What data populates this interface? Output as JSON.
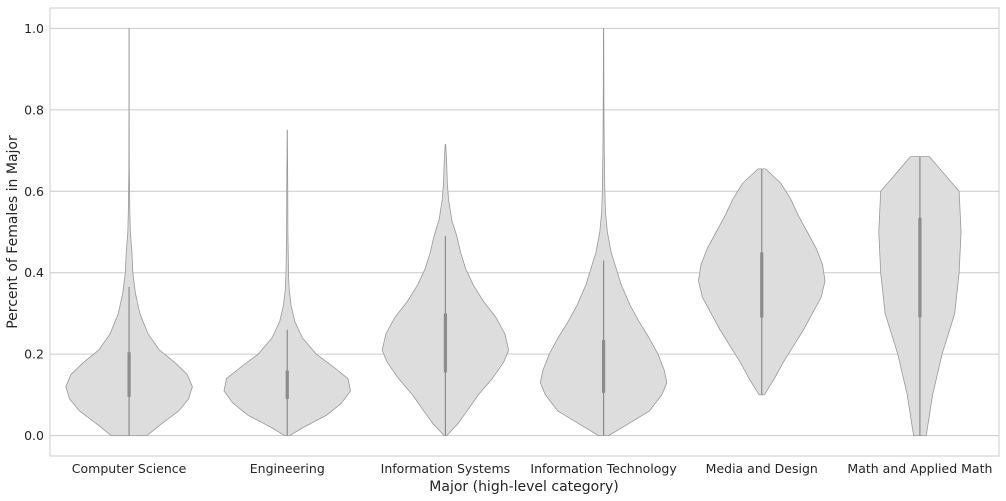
{
  "chart_data": {
    "type": "violin",
    "title": "",
    "xlabel": "Major (high-level category)",
    "ylabel": "Percent of Females in Major",
    "ylim": [
      -0.05,
      1.05
    ],
    "yticks": [
      "0.0",
      "0.2",
      "0.4",
      "0.6",
      "0.8",
      "1.0"
    ],
    "ytick_values": [
      0.0,
      0.2,
      0.4,
      0.6,
      0.8,
      1.0
    ],
    "grid": true,
    "colors": {
      "fill": "#dddddd",
      "edge": "#999999",
      "box": "#8c8c8c",
      "grid": "#cccccc"
    },
    "categories": [
      "Computer Science",
      "Engineering",
      "Information Systems",
      "Information Technology",
      "Media and Design",
      "Math and Applied Math"
    ],
    "violins": [
      {
        "min": 0.0,
        "max": 1.0,
        "q1": 0.095,
        "median": 0.14,
        "q3": 0.205,
        "whisker_low": 0.0,
        "whisker_high": 0.365,
        "profile": [
          [
            0.0,
            0.28
          ],
          [
            0.03,
            0.52
          ],
          [
            0.06,
            0.78
          ],
          [
            0.09,
            0.94
          ],
          [
            0.12,
            1.0
          ],
          [
            0.15,
            0.92
          ],
          [
            0.18,
            0.72
          ],
          [
            0.21,
            0.48
          ],
          [
            0.25,
            0.3
          ],
          [
            0.3,
            0.17
          ],
          [
            0.35,
            0.1
          ],
          [
            0.4,
            0.06
          ],
          [
            0.45,
            0.045
          ],
          [
            0.5,
            0.02
          ],
          [
            0.55,
            0.012
          ],
          [
            0.6,
            0.008
          ],
          [
            0.65,
            0.004
          ],
          [
            0.7,
            0.003
          ],
          [
            0.8,
            0.002
          ],
          [
            0.9,
            0.002
          ],
          [
            1.0,
            0.002
          ]
        ]
      },
      {
        "min": 0.0,
        "max": 0.75,
        "q1": 0.09,
        "median": 0.12,
        "q3": 0.16,
        "whisker_low": 0.0,
        "whisker_high": 0.26,
        "profile": [
          [
            0.0,
            0.04
          ],
          [
            0.02,
            0.25
          ],
          [
            0.05,
            0.62
          ],
          [
            0.08,
            0.86
          ],
          [
            0.11,
            1.0
          ],
          [
            0.14,
            0.96
          ],
          [
            0.17,
            0.72
          ],
          [
            0.2,
            0.46
          ],
          [
            0.24,
            0.24
          ],
          [
            0.28,
            0.12
          ],
          [
            0.32,
            0.06
          ],
          [
            0.36,
            0.03
          ],
          [
            0.4,
            0.02
          ],
          [
            0.5,
            0.01
          ],
          [
            0.6,
            0.008
          ],
          [
            0.7,
            0.004
          ],
          [
            0.75,
            0.002
          ]
        ]
      },
      {
        "min": 0.0,
        "max": 0.715,
        "q1": 0.155,
        "median": 0.22,
        "q3": 0.3,
        "whisker_low": 0.0,
        "whisker_high": 0.49,
        "profile": [
          [
            0.0,
            0.02
          ],
          [
            0.03,
            0.2
          ],
          [
            0.06,
            0.34
          ],
          [
            0.1,
            0.52
          ],
          [
            0.14,
            0.74
          ],
          [
            0.18,
            0.92
          ],
          [
            0.21,
            1.0
          ],
          [
            0.25,
            0.94
          ],
          [
            0.29,
            0.8
          ],
          [
            0.33,
            0.6
          ],
          [
            0.37,
            0.44
          ],
          [
            0.41,
            0.32
          ],
          [
            0.45,
            0.24
          ],
          [
            0.49,
            0.18
          ],
          [
            0.53,
            0.1
          ],
          [
            0.58,
            0.05
          ],
          [
            0.62,
            0.03
          ],
          [
            0.67,
            0.02
          ],
          [
            0.715,
            0.004
          ]
        ]
      },
      {
        "min": 0.0,
        "max": 1.0,
        "q1": 0.105,
        "median": 0.16,
        "q3": 0.235,
        "whisker_low": 0.0,
        "whisker_high": 0.43,
        "profile": [
          [
            0.0,
            0.08
          ],
          [
            0.03,
            0.4
          ],
          [
            0.06,
            0.72
          ],
          [
            0.1,
            0.92
          ],
          [
            0.13,
            1.0
          ],
          [
            0.16,
            0.96
          ],
          [
            0.2,
            0.86
          ],
          [
            0.24,
            0.72
          ],
          [
            0.28,
            0.56
          ],
          [
            0.32,
            0.42
          ],
          [
            0.37,
            0.28
          ],
          [
            0.41,
            0.2
          ],
          [
            0.45,
            0.12
          ],
          [
            0.5,
            0.06
          ],
          [
            0.55,
            0.03
          ],
          [
            0.6,
            0.02
          ],
          [
            0.7,
            0.01
          ],
          [
            0.8,
            0.006
          ],
          [
            0.9,
            0.004
          ],
          [
            1.0,
            0.002
          ]
        ]
      },
      {
        "min": 0.1,
        "max": 0.655,
        "q1": 0.29,
        "median": 0.36,
        "q3": 0.45,
        "whisker_low": 0.1,
        "whisker_high": 0.655,
        "profile": [
          [
            0.1,
            0.04
          ],
          [
            0.14,
            0.2
          ],
          [
            0.18,
            0.34
          ],
          [
            0.22,
            0.5
          ],
          [
            0.26,
            0.66
          ],
          [
            0.3,
            0.8
          ],
          [
            0.34,
            0.94
          ],
          [
            0.38,
            1.0
          ],
          [
            0.42,
            0.96
          ],
          [
            0.46,
            0.86
          ],
          [
            0.5,
            0.72
          ],
          [
            0.54,
            0.58
          ],
          [
            0.58,
            0.46
          ],
          [
            0.62,
            0.3
          ],
          [
            0.655,
            0.06
          ]
        ]
      },
      {
        "min": 0.0,
        "max": 0.685,
        "q1": 0.29,
        "median": 0.41,
        "q3": 0.535,
        "whisker_low": 0.0,
        "whisker_high": 0.685,
        "profile": [
          [
            0.0,
            0.1
          ],
          [
            0.1,
            0.2
          ],
          [
            0.2,
            0.35
          ],
          [
            0.3,
            0.55
          ],
          [
            0.4,
            0.62
          ],
          [
            0.5,
            0.65
          ],
          [
            0.6,
            0.62
          ],
          [
            0.685,
            0.15
          ]
        ]
      }
    ]
  }
}
